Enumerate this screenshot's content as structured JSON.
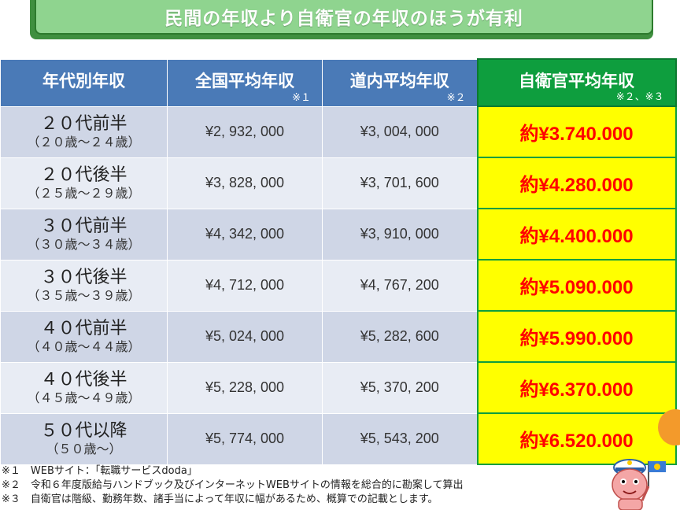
{
  "title": "民間の年収より自衛官の年収のほうが有利",
  "table": {
    "headers": [
      {
        "label": "年代別年収",
        "note": ""
      },
      {
        "label": "全国平均年収",
        "note": "※１"
      },
      {
        "label": "道内平均年収",
        "note": "※２"
      },
      {
        "label": "自衛官平均年収",
        "note": "※２、※３"
      }
    ],
    "rows": [
      {
        "age": "２０代前半",
        "range": "（２０歳～２４歳）",
        "national": "¥2, 932, 000",
        "hokkaido": "¥3, 004, 000",
        "sdf": "約¥3.740.000"
      },
      {
        "age": "２０代後半",
        "range": "（２５歳～２９歳）",
        "national": "¥3, 828, 000",
        "hokkaido": "¥3, 701, 600",
        "sdf": "約¥4.280.000"
      },
      {
        "age": "３０代前半",
        "range": "（３０歳～３４歳）",
        "national": "¥4, 342, 000",
        "hokkaido": "¥3, 910, 000",
        "sdf": "約¥4.400.000"
      },
      {
        "age": "３０代後半",
        "range": "（３５歳～３９歳）",
        "national": "¥4, 712, 000",
        "hokkaido": "¥4, 767, 200",
        "sdf": "約¥5.090.000"
      },
      {
        "age": "４０代前半",
        "range": "（４０歳～４４歳）",
        "national": "¥5, 024, 000",
        "hokkaido": "¥5, 282, 600",
        "sdf": "約¥5.990.000"
      },
      {
        "age": "４０代後半",
        "range": "（４５歳～４９歳）",
        "national": "¥5, 228, 000",
        "hokkaido": "¥5, 370, 200",
        "sdf": "約¥6.370.000"
      },
      {
        "age": "５０代以降",
        "range": "（５０歳～）",
        "national": "¥5, 774, 000",
        "hokkaido": "¥5, 543, 200",
        "sdf": "約¥6.520.000"
      }
    ]
  },
  "footnotes": [
    "※１　WEBサイト：「転職サービスdoda」",
    "※２　令和６年度版給与ハンドブック及びインターネットWEBサイトの情報を総合的に勘案して算出",
    "※３　自衛官は階級、勤務年数、諸手当によって年収に幅があるため、概算での記載とします。"
  ],
  "colors": {
    "header_blue": "#4a7ab7",
    "header_green": "#0e9e3e",
    "highlight_yellow": "#ffff00",
    "highlight_text_red": "#ff0000",
    "row_dark": "#cfd6e6",
    "row_light": "#e8ecf4"
  },
  "icons": [
    "mascot-character-icon",
    "speech-bubble-icon"
  ]
}
